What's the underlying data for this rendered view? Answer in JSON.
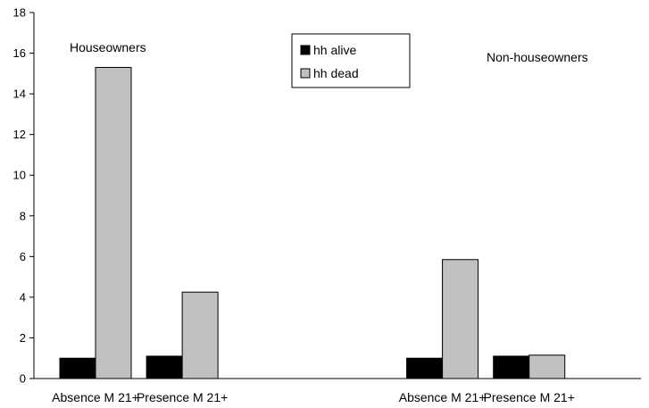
{
  "chart_data": {
    "type": "bar",
    "title": "",
    "xlabel": "",
    "ylabel": "",
    "ylim": [
      0,
      18
    ],
    "yticks": [
      0,
      2,
      4,
      6,
      8,
      10,
      12,
      14,
      16,
      18
    ],
    "grid": false,
    "legend_position": "top-center",
    "groups": [
      {
        "label": "Houseowners",
        "categories": [
          "Absence M 21+",
          "Presence M 21+"
        ]
      },
      {
        "label": "Non-houseowners",
        "categories": [
          "Absence M 21+",
          "Presence M 21+"
        ]
      }
    ],
    "categories": [
      "Absence M 21+",
      "Presence M 21+",
      "Absence M 21+",
      "Presence M 21+"
    ],
    "series": [
      {
        "name": "hh alive",
        "color": "#000000",
        "values": [
          1.0,
          1.1,
          1.0,
          1.1
        ]
      },
      {
        "name": "hh dead",
        "color": "#c0c0c0",
        "values": [
          15.3,
          4.25,
          5.85,
          1.15
        ]
      }
    ]
  }
}
